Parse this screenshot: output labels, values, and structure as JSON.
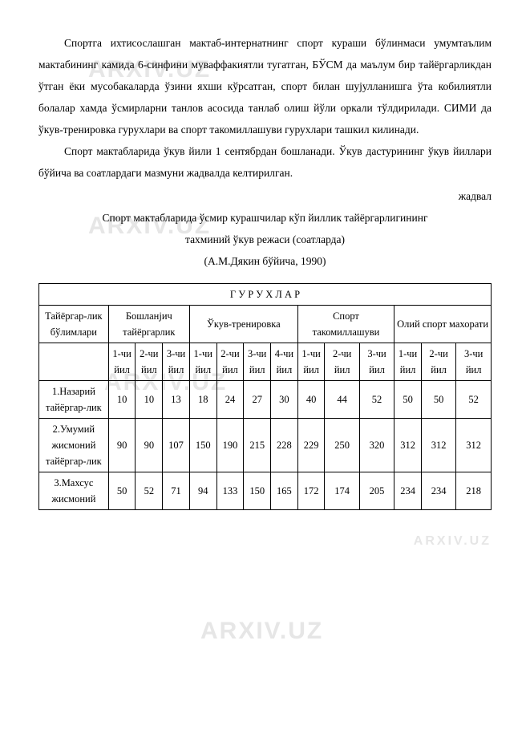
{
  "paragraphs": {
    "p1": "Спортга ихтисослашган мактаб-интернатнинг спорт кураши бўлинмаси умумтаълим мактабининг камида 6-синфини муваффакиятли тугатган, БЎСМ да маълум бир тайёргарликдан ўтган ёки мусобакаларда ўзини яхши кўрсатган, спорт билан шуjулланишга ўта кобилиятли болалар хамда ўсмирларни танлов асосида танлаб олиш йўли оркали тўлдирилади. СИМИ да ўкув-тренировка гурухлари ва спорт такомиллашуви гурухлари ташкил килинади.",
    "p2": "Спорт мактабларида ўкув йили 1 сентябрдан бошланади. Ўкув дастурининг ўкув йиллари бўйича ва соатлардаги мазмуни жадвалда келтирилган.",
    "right": "жадвал",
    "c1": "Спорт мактабларида ўсмир курашчилар кўп йиллик тайёргарлигининг",
    "c2": "тахминий ўкув режаси (соатларда)",
    "c3": "(А.М.Дякин бўйича, 1990)"
  },
  "table": {
    "title": "Г У Р У Х Л А Р",
    "col_stub": "Тайёргар-лик бўлимлари",
    "groups": [
      {
        "label": "Бошланjич тайёргарлик",
        "span": 3
      },
      {
        "label": "Ўкув-тренировка",
        "span": 4
      },
      {
        "label": "Спорт такомиллашуви",
        "span": 3
      },
      {
        "label": "Олий спорт махорати",
        "span": 3
      }
    ],
    "subcols": [
      "1-чи йил",
      "2-чи йил",
      "3-чи йил",
      "1-чи йил",
      "2-чи йил",
      "3-чи йил",
      "4-чи йил",
      "1-чи йил",
      "2-чи йил",
      "3-чи йил",
      "1-чи йил",
      "2-чи йил",
      "3-чи йил"
    ],
    "rows": [
      {
        "label": "1.Назарий тайёргар-лик",
        "vals": [
          10,
          10,
          13,
          18,
          24,
          27,
          30,
          40,
          44,
          52,
          50,
          50,
          52
        ]
      },
      {
        "label": "2.Умумий жисмоний тайёргар-лик",
        "vals": [
          90,
          90,
          107,
          150,
          190,
          215,
          228,
          229,
          250,
          320,
          312,
          312,
          312
        ]
      },
      {
        "label": "3.Махсус жисмоний",
        "vals": [
          50,
          52,
          71,
          94,
          133,
          150,
          165,
          172,
          174,
          205,
          234,
          234,
          218
        ]
      }
    ],
    "col_widths_class": [
      "c3",
      "c3",
      "c3",
      "c3",
      "c3",
      "c3",
      "c3",
      "c3",
      "c4",
      "c4",
      "c3",
      "c4",
      "c4"
    ]
  },
  "style": {
    "font_family": "Times New Roman",
    "body_fontsize_pt": 10,
    "line_height": 2.0,
    "text_color": "#000000",
    "background_color": "#ffffff",
    "watermark_color": "#e6e6e6",
    "table_border_color": "#000000"
  }
}
